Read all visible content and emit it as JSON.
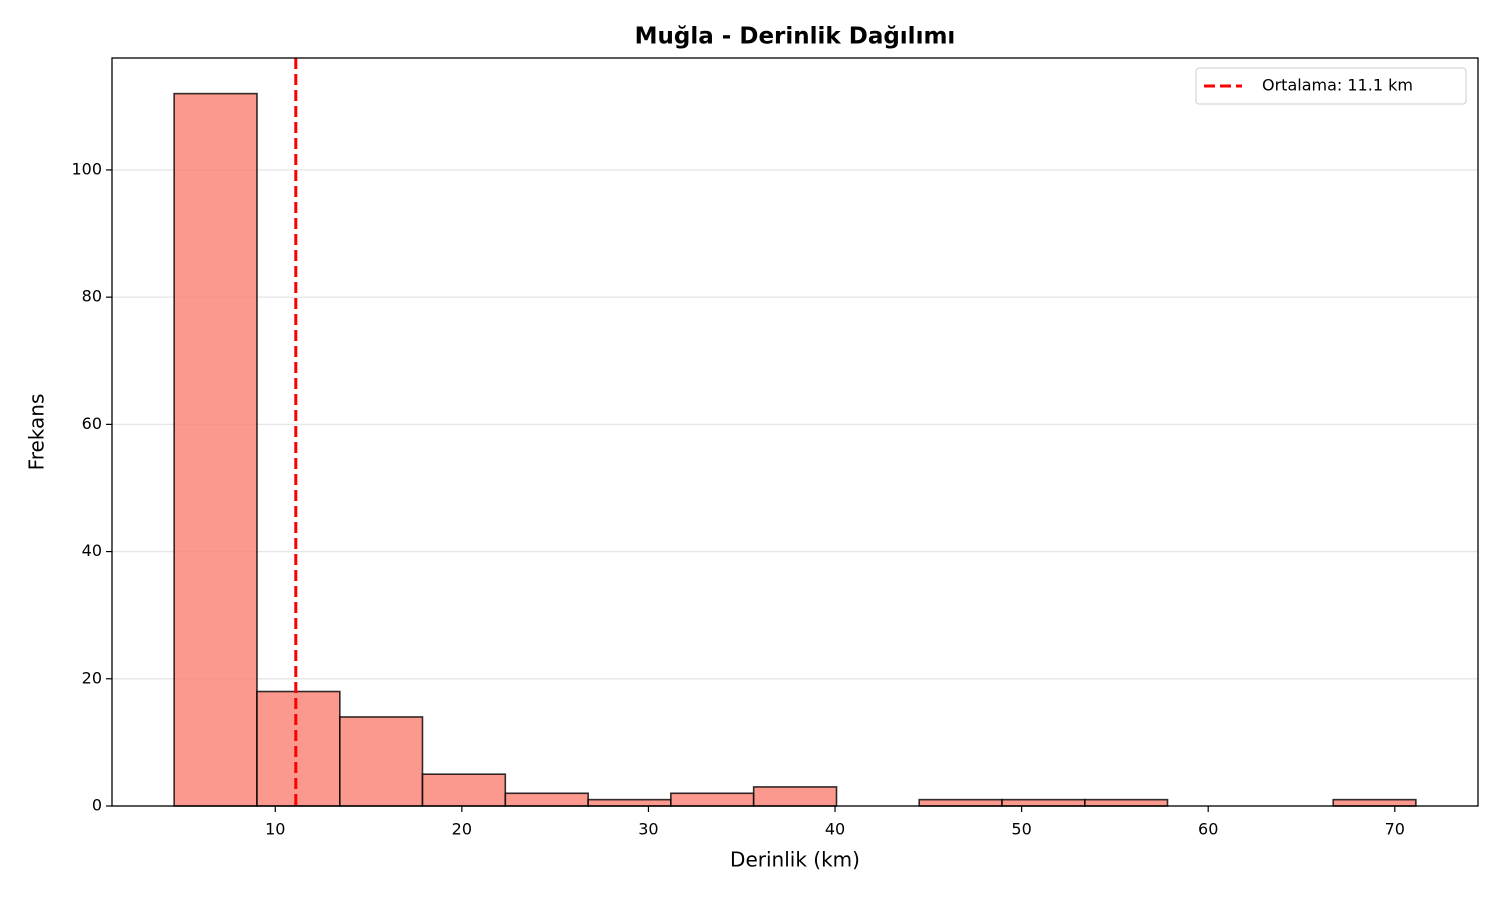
{
  "chart_data": {
    "type": "histogram",
    "title": "Muğla - Derinlik Dağılımı",
    "x_label": "Derinlik (km)",
    "y_label": "Frekans",
    "bins": [
      4.58,
      9.02,
      13.46,
      17.89,
      22.33,
      26.77,
      31.2,
      35.64,
      40.08,
      44.51,
      48.95,
      53.39,
      57.82,
      62.26,
      66.7,
      71.13
    ],
    "values": [
      112,
      18,
      14,
      5,
      2,
      1,
      2,
      3,
      0,
      1,
      1,
      1,
      0,
      0,
      1
    ],
    "color": "#fa8072",
    "edge_color": "#000000",
    "mean_line": {
      "value": 11.1,
      "label": "Ortalama: 11.1 km",
      "color": "#ff0000"
    },
    "xlim": [
      1.25,
      74.46
    ],
    "xticks": [
      10,
      20,
      30,
      40,
      50,
      60,
      70
    ],
    "ylim": [
      0,
      117.6
    ],
    "yticks": [
      0,
      20,
      40,
      60,
      80,
      100
    ],
    "grid": "y",
    "legend": "upper right"
  }
}
